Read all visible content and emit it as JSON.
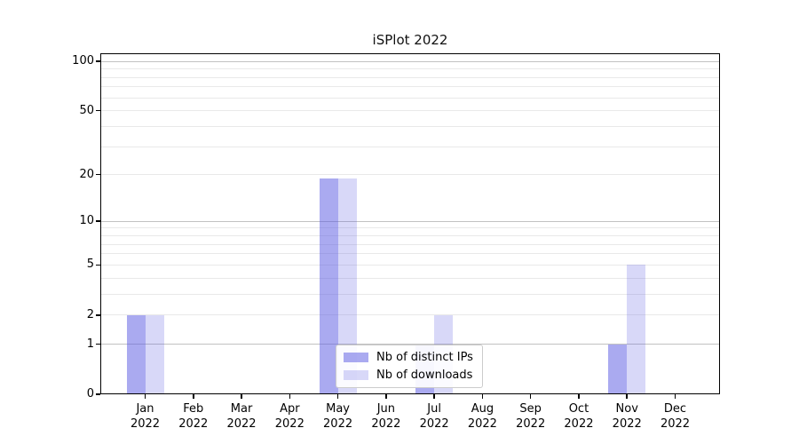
{
  "figure": {
    "background": "#ffffff"
  },
  "chart_data": {
    "type": "bar",
    "title": "iSPlot 2022",
    "categories": [
      "Jan 2022",
      "Feb 2022",
      "Mar 2022",
      "Apr 2022",
      "May 2022",
      "Jun 2022",
      "Jul 2022",
      "Aug 2022",
      "Sep 2022",
      "Oct 2022",
      "Nov 2022",
      "Dec 2022"
    ],
    "series": [
      {
        "name": "Nb of distinct IPs",
        "color": "rgba(85,85,226,0.50)",
        "approx_hex_on_white": "#aaaaf0",
        "values": [
          2,
          0,
          0,
          0,
          19,
          0,
          1,
          0,
          0,
          0,
          1,
          0
        ]
      },
      {
        "name": "Nb of downloads",
        "color": "rgba(85,85,226,0.23)",
        "approx_hex_on_white": "#d8d8f8",
        "values": [
          2,
          0,
          0,
          0,
          19,
          0,
          2,
          0,
          0,
          0,
          5,
          0
        ]
      }
    ],
    "xlabel": "",
    "ylabel": "",
    "yscale": "log1p",
    "ylim": [
      0,
      112
    ],
    "y_tick_labels": [
      0,
      1,
      2,
      5,
      10,
      20,
      50,
      100
    ],
    "y_major_gridlines": [
      1,
      10,
      100
    ],
    "y_minor_gridlines": [
      2,
      3,
      4,
      5,
      6,
      7,
      8,
      9,
      20,
      30,
      40,
      50,
      60,
      70,
      80,
      90
    ],
    "grid": "both",
    "legend_position": "lower-center"
  },
  "colors": {
    "grid_major": "#c2c2c2",
    "grid_minor": "#e9e9e9",
    "axis": "#000000",
    "text": "#000000",
    "legend_border": "#cccccc"
  }
}
